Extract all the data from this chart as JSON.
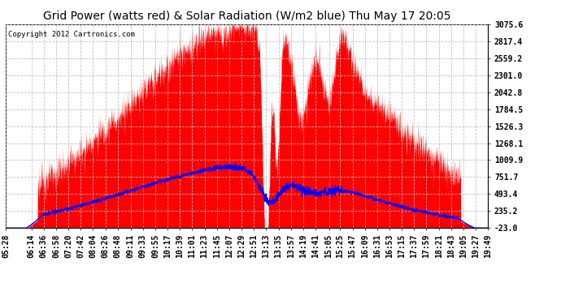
{
  "title": "Grid Power (watts red) & Solar Radiation (W/m2 blue) Thu May 17 20:05",
  "copyright_text": "Copyright 2012 Cartronics.com",
  "y_ticks": [
    -23.0,
    235.2,
    493.4,
    751.7,
    1009.9,
    1268.1,
    1526.3,
    1784.5,
    2042.8,
    2301.0,
    2559.2,
    2817.4,
    3075.6
  ],
  "y_min": -23.0,
  "y_max": 3075.6,
  "bg_color": "#ffffff",
  "plot_bg_color": "#ffffff",
  "grid_color": "#bbbbbb",
  "red_color": "#ff0000",
  "blue_color": "#0000ff",
  "title_fontsize": 10,
  "copyright_fontsize": 6.5,
  "tick_fontsize": 7,
  "xtick_labels": [
    "05:28",
    "06:14",
    "06:36",
    "06:58",
    "07:20",
    "07:42",
    "08:04",
    "08:26",
    "08:48",
    "09:11",
    "09:33",
    "09:55",
    "10:17",
    "10:39",
    "11:01",
    "11:23",
    "11:45",
    "12:07",
    "12:29",
    "12:51",
    "13:13",
    "13:35",
    "13:57",
    "14:19",
    "14:41",
    "15:05",
    "15:25",
    "15:47",
    "16:09",
    "16:31",
    "16:53",
    "17:15",
    "17:37",
    "17:59",
    "18:21",
    "18:43",
    "19:05",
    "19:27",
    "19:49"
  ]
}
